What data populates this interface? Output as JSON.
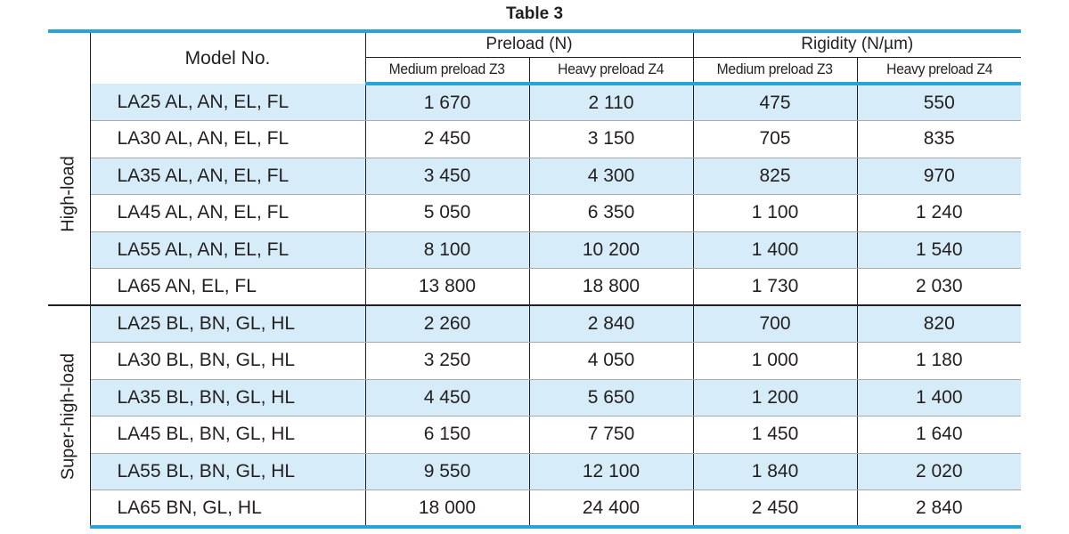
{
  "title": "Table 3",
  "header": {
    "model_label": "Model No.",
    "groups": [
      "Preload (N)",
      "Rigidity (N/µm)"
    ],
    "subheaders": [
      "Medium preload Z3",
      "Heavy preload Z4",
      "Medium preload Z3",
      "Heavy preload Z4"
    ]
  },
  "groups": [
    {
      "label": "High-load",
      "rows": [
        [
          "LA25 AL, AN, EL, FL",
          "1 670",
          "2 110",
          "475",
          "550"
        ],
        [
          "LA30 AL, AN, EL, FL",
          "2 450",
          "3 150",
          "705",
          "835"
        ],
        [
          "LA35 AL, AN, EL, FL",
          "3 450",
          "4 300",
          "825",
          "970"
        ],
        [
          "LA45 AL, AN, EL, FL",
          "5 050",
          "6 350",
          "1 100",
          "1 240"
        ],
        [
          "LA55 AL, AN, EL, FL",
          "8 100",
          "10 200",
          "1 400",
          "1 540"
        ],
        [
          "LA65 AN, EL, FL",
          "13 800",
          "18 800",
          "1 730",
          "2 030"
        ]
      ]
    },
    {
      "label": "Super-high-load",
      "rows": [
        [
          "LA25 BL, BN, GL, HL",
          "2 260",
          "2 840",
          "700",
          "820"
        ],
        [
          "LA30 BL, BN, GL, HL",
          "3 250",
          "4 050",
          "1 000",
          "1 180"
        ],
        [
          "LA35 BL, BN, GL, HL",
          "4 450",
          "5 650",
          "1 200",
          "1 400"
        ],
        [
          "LA45 BL, BN, GL, HL",
          "6 150",
          "7 750",
          "1 450",
          "1 640"
        ],
        [
          "LA55 BL, BN, GL, HL",
          "9 550",
          "12 100",
          "1 840",
          "2 020"
        ],
        [
          "LA65 BN, GL, HL",
          "18 000",
          "24 400",
          "2 450",
          "2 840"
        ]
      ]
    }
  ],
  "colors": {
    "accent_rule": "#2aa3d8",
    "row_shade": "#d6ecf8",
    "text": "#231f20"
  }
}
